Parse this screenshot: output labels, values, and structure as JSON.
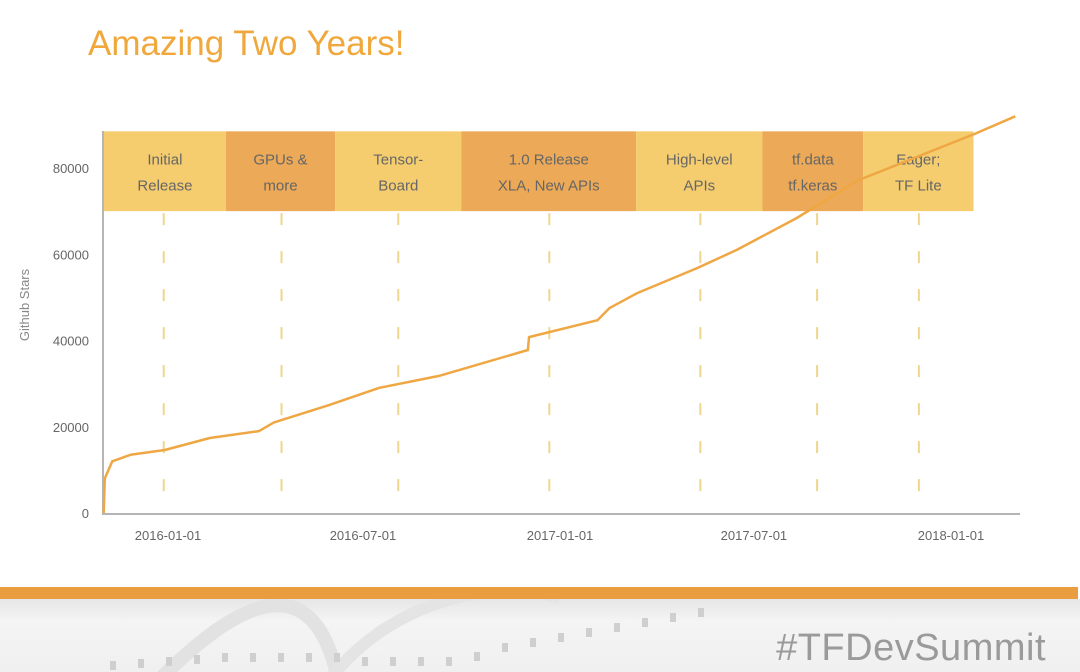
{
  "slide": {
    "title": "Amazing Two Years!",
    "hashtag": "#TFDevSummit"
  },
  "colors": {
    "line": "#efa743",
    "band_light": "#f5cd6f",
    "band_dark": "#eca957",
    "dash": "#eed68c",
    "axis": "#b5b5b5",
    "accent_bar": "#e99d3e"
  },
  "chart_data": {
    "type": "line",
    "title": "Amazing Two Years!",
    "xlabel": "",
    "ylabel": "Github Stars",
    "xlim": [
      "2015-11-02",
      "2018-03-05"
    ],
    "ylim": [
      0,
      80000
    ],
    "x_ticks": [
      "2016-01-01",
      "2016-07-01",
      "2017-01-01",
      "2017-07-01",
      "2018-01-01"
    ],
    "y_ticks": [
      0,
      20000,
      40000,
      60000,
      80000
    ],
    "grid": false,
    "series": [
      {
        "name": "Github Stars",
        "points": [
          [
            "2015-11-02",
            0
          ],
          [
            "2015-11-03",
            8000
          ],
          [
            "2015-11-10",
            12000
          ],
          [
            "2015-11-27",
            13500
          ],
          [
            "2015-12-29",
            14600
          ],
          [
            "2016-02-09",
            17400
          ],
          [
            "2016-03-26",
            19000
          ],
          [
            "2016-04-09",
            21000
          ],
          [
            "2016-05-30",
            25000
          ],
          [
            "2016-07-16",
            29000
          ],
          [
            "2016-09-10",
            31800
          ],
          [
            "2016-12-02",
            37800
          ],
          [
            "2016-12-03",
            40800
          ],
          [
            "2017-02-05",
            44700
          ],
          [
            "2017-02-16",
            47500
          ],
          [
            "2017-03-14",
            51000
          ],
          [
            "2017-05-09",
            56800
          ],
          [
            "2017-06-15",
            61000
          ],
          [
            "2017-08-10",
            68400
          ],
          [
            "2017-10-05",
            77000
          ],
          [
            "2018-01-24",
            88000
          ],
          [
            "2018-03-02",
            92000
          ]
        ]
      }
    ],
    "milestones": [
      {
        "lines": [
          "Initial",
          "Release"
        ],
        "start": "2015-11-02",
        "end": "2016-02-24",
        "marker": "2015-12-28",
        "shade": "light"
      },
      {
        "lines": [
          "GPUs &",
          "more"
        ],
        "start": "2016-02-24",
        "end": "2016-06-05",
        "marker": "2016-04-16",
        "shade": "dark"
      },
      {
        "lines": [
          "Tensor-",
          "Board"
        ],
        "start": "2016-06-05",
        "end": "2016-10-01",
        "marker": "2016-08-03",
        "shade": "light"
      },
      {
        "lines": [
          "1.0 Release",
          "XLA, New APIs"
        ],
        "start": "2016-10-01",
        "end": "2017-03-13",
        "marker": "2016-12-22",
        "shade": "dark"
      },
      {
        "lines": [
          "High-level",
          "APIs"
        ],
        "start": "2017-03-13",
        "end": "2017-07-09",
        "marker": "2017-05-12",
        "shade": "light"
      },
      {
        "lines": [
          "tf.data",
          "tf.keras"
        ],
        "start": "2017-07-09",
        "end": "2017-10-11",
        "marker": "2017-08-29",
        "shade": "dark"
      },
      {
        "lines": [
          "Eager;",
          "TF Lite"
        ],
        "start": "2017-10-11",
        "end": "2018-01-22",
        "marker": "2017-12-02",
        "shade": "light"
      }
    ],
    "band_range": [
      70000,
      88500
    ]
  }
}
